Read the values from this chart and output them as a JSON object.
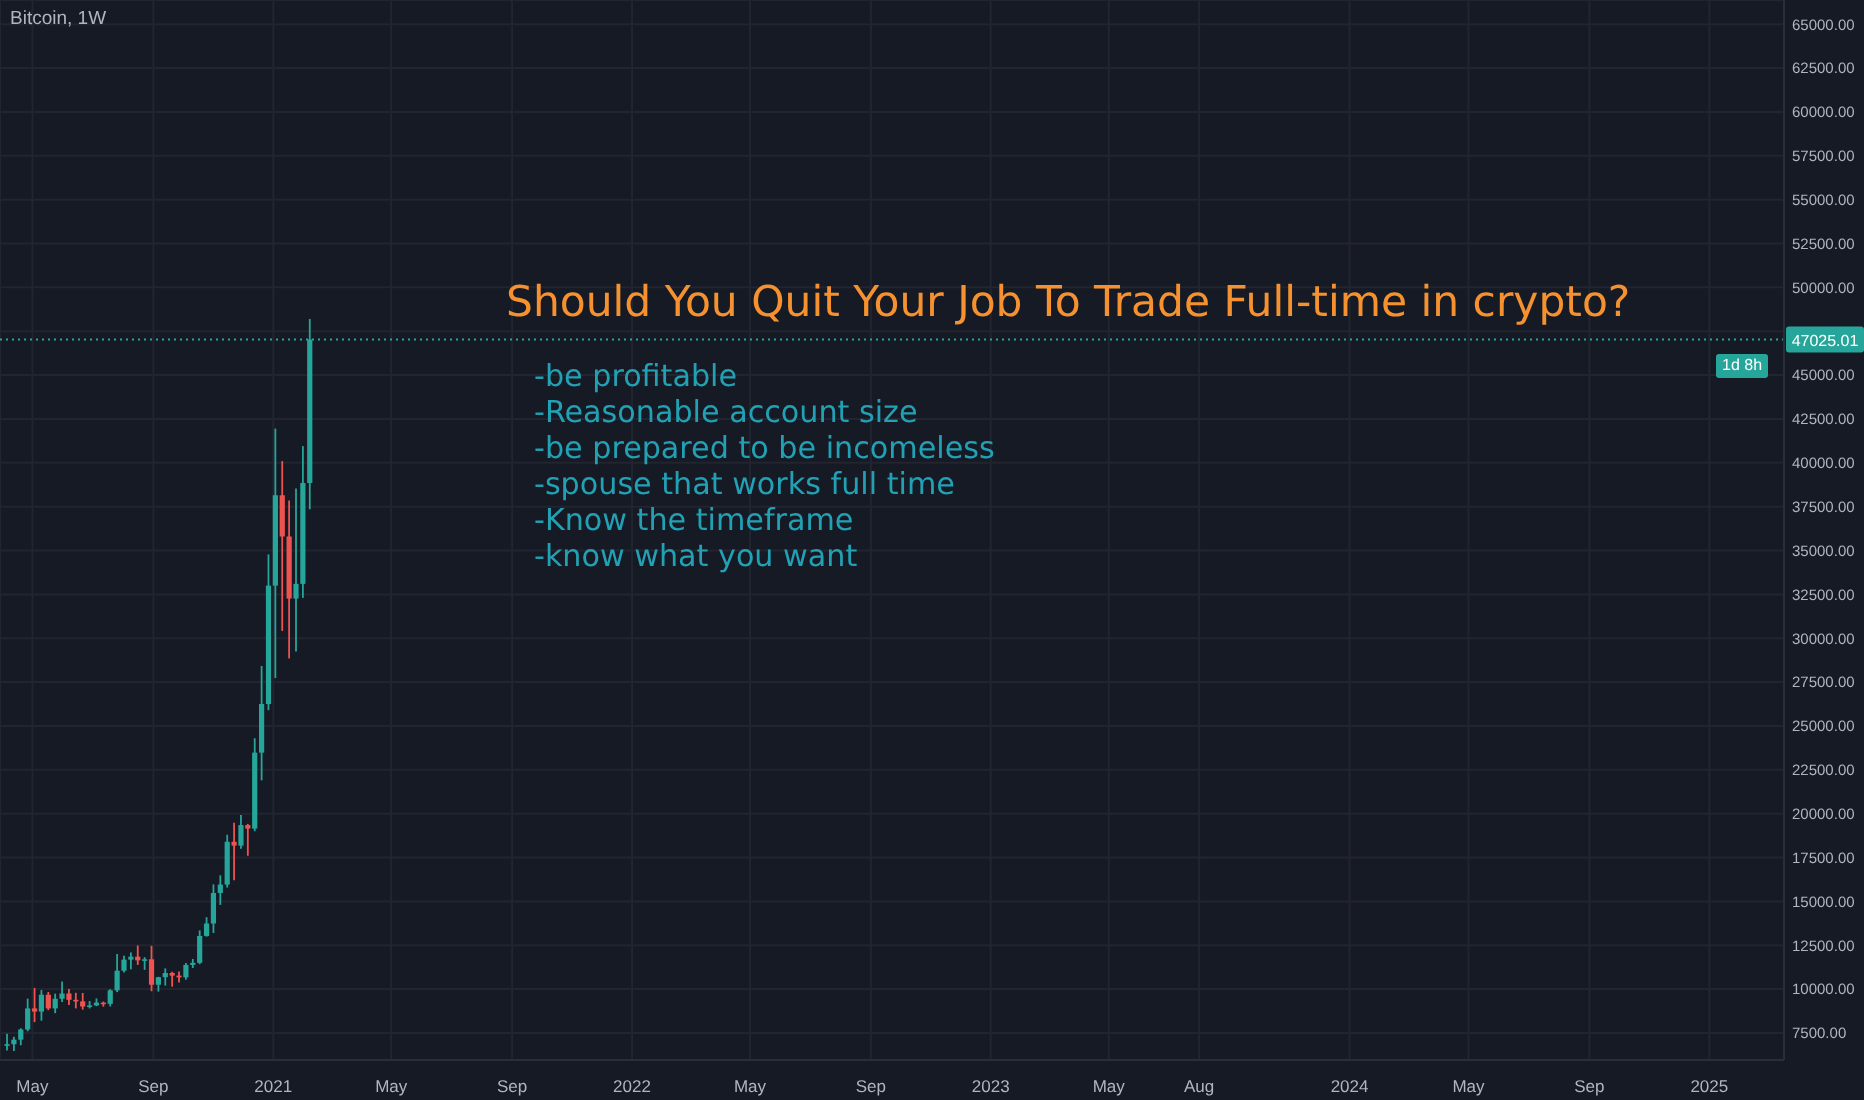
{
  "chart_data": {
    "type": "candlestick",
    "title": "Bitcoin, 1W",
    "subtitle": "Should You Quit Your Job To Trade Full-time in crypto?",
    "annotations": [
      "-be profitable",
      "-Reasonable account size",
      "-be prepared to be incomeless",
      "-spouse that works full time",
      "-Know the timeframe",
      "-know what you want",
      {
        "text": "1d 8h",
        "y": 47025.01
      }
    ],
    "x": [
      "2020-04-06",
      "2020-04-13",
      "2020-04-20",
      "2020-04-27",
      "2020-05-04",
      "2020-05-11",
      "2020-05-18",
      "2020-05-25",
      "2020-06-01",
      "2020-06-08",
      "2020-06-15",
      "2020-06-22",
      "2020-06-29",
      "2020-07-06",
      "2020-07-13",
      "2020-07-20",
      "2020-07-27",
      "2020-08-03",
      "2020-08-10",
      "2020-08-17",
      "2020-08-24",
      "2020-08-31",
      "2020-09-07",
      "2020-09-14",
      "2020-09-21",
      "2020-09-28",
      "2020-10-05",
      "2020-10-12",
      "2020-10-19",
      "2020-10-26",
      "2020-11-02",
      "2020-11-09",
      "2020-11-16",
      "2020-11-23",
      "2020-11-30",
      "2020-12-07",
      "2020-12-14",
      "2020-12-21",
      "2020-12-28",
      "2021-01-04",
      "2021-01-11",
      "2021-01-18",
      "2021-01-25",
      "2021-02-01",
      "2021-02-08"
    ],
    "ohlc": [
      [
        6775,
        7460,
        6500,
        6860
      ],
      [
        6860,
        7290,
        6470,
        7120
      ],
      [
        7120,
        7770,
        6800,
        7700
      ],
      [
        7700,
        9460,
        7600,
        8900
      ],
      [
        8900,
        10070,
        8120,
        8720
      ],
      [
        8720,
        9950,
        8200,
        9680
      ],
      [
        9680,
        9840,
        8800,
        8900
      ],
      [
        8900,
        9740,
        8630,
        9450
      ],
      [
        9450,
        10430,
        9270,
        9750
      ],
      [
        9750,
        10000,
        9100,
        9390
      ],
      [
        9390,
        9790,
        8900,
        9300
      ],
      [
        9300,
        9780,
        8830,
        9010
      ],
      [
        9010,
        9320,
        8900,
        9070
      ],
      [
        9070,
        9470,
        9030,
        9230
      ],
      [
        9230,
        9290,
        9000,
        9160
      ],
      [
        9160,
        10000,
        9010,
        9930
      ],
      [
        9930,
        12000,
        9830,
        11050
      ],
      [
        11050,
        11900,
        10950,
        11680
      ],
      [
        11680,
        12090,
        11130,
        11850
      ],
      [
        11850,
        12490,
        11380,
        11640
      ],
      [
        11640,
        11820,
        11100,
        11700
      ],
      [
        11700,
        12470,
        9880,
        10250
      ],
      [
        10250,
        10700,
        9860,
        10680
      ],
      [
        10680,
        11180,
        10200,
        10920
      ],
      [
        10920,
        10990,
        10140,
        10770
      ],
      [
        10770,
        11000,
        10380,
        10670
      ],
      [
        10670,
        11490,
        10530,
        11380
      ],
      [
        11380,
        11720,
        11200,
        11500
      ],
      [
        11500,
        13350,
        11420,
        13030
      ],
      [
        13030,
        14100,
        12990,
        13740
      ],
      [
        13740,
        15970,
        13200,
        15480
      ],
      [
        15480,
        16490,
        14800,
        15960
      ],
      [
        15960,
        18800,
        15790,
        18400
      ],
      [
        18400,
        19480,
        16200,
        18180
      ],
      [
        18180,
        19920,
        18000,
        19350
      ],
      [
        19350,
        19420,
        17600,
        19150
      ],
      [
        19150,
        24300,
        19000,
        23480
      ],
      [
        23480,
        28420,
        21900,
        26250
      ],
      [
        26250,
        34780,
        25900,
        33000
      ],
      [
        33000,
        41950,
        27730,
        38150
      ],
      [
        38150,
        40100,
        30420,
        35800
      ],
      [
        35800,
        37850,
        28850,
        32260
      ],
      [
        32260,
        38530,
        29240,
        33100
      ],
      [
        33100,
        40950,
        32300,
        38850
      ],
      [
        38850,
        48200,
        37350,
        47025.01
      ]
    ],
    "colors": [
      "#26a69a",
      "#26a69a",
      "#26a69a",
      "#26a69a",
      "#ef5350",
      "#26a69a",
      "#ef5350",
      "#26a69a",
      "#26a69a",
      "#ef5350",
      "#ef5350",
      "#ef5350",
      "#26a69a",
      "#26a69a",
      "#ef5350",
      "#26a69a",
      "#26a69a",
      "#26a69a",
      "#26a69a",
      "#ef5350",
      "#26a69a",
      "#ef5350",
      "#26a69a",
      "#26a69a",
      "#ef5350",
      "#ef5350",
      "#26a69a",
      "#26a69a",
      "#26a69a",
      "#26a69a",
      "#26a69a",
      "#26a69a",
      "#26a69a",
      "#ef5350",
      "#26a69a",
      "#ef5350",
      "#26a69a",
      "#26a69a",
      "#26a69a",
      "#26a69a",
      "#ef5350",
      "#ef5350",
      "#26a69a",
      "#26a69a",
      "#26a69a"
    ],
    "xlim": [
      "2020-03-29",
      "2025-03-18"
    ],
    "xticks": [
      {
        "value": "2020-05-01",
        "label": "May"
      },
      {
        "value": "2020-09-01",
        "label": "Sep"
      },
      {
        "value": "2021-01-01",
        "label": "2021"
      },
      {
        "value": "2021-05-01",
        "label": "May"
      },
      {
        "value": "2021-09-01",
        "label": "Sep"
      },
      {
        "value": "2022-01-01",
        "label": "2022"
      },
      {
        "value": "2022-05-01",
        "label": "May"
      },
      {
        "value": "2022-09-01",
        "label": "Sep"
      },
      {
        "value": "2023-01-01",
        "label": "2023"
      },
      {
        "value": "2023-05-01",
        "label": "May"
      },
      {
        "value": "2023-08-01",
        "label": "Aug"
      },
      {
        "value": "2024-01-01",
        "label": "2024"
      },
      {
        "value": "2024-05-01",
        "label": "May"
      },
      {
        "value": "2024-09-01",
        "label": "Sep"
      },
      {
        "value": "2025-01-01",
        "label": "2025"
      }
    ],
    "ylim": [
      5960,
      66380
    ],
    "yticks": [
      {
        "value": 7500,
        "label": "7500.00"
      },
      {
        "value": 10000,
        "label": "10000.00"
      },
      {
        "value": 12500,
        "label": "12500.00"
      },
      {
        "value": 15000,
        "label": "15000.00"
      },
      {
        "value": 17500,
        "label": "17500.00"
      },
      {
        "value": 20000,
        "label": "20000.00"
      },
      {
        "value": 22500,
        "label": "22500.00"
      },
      {
        "value": 25000,
        "label": "25000.00"
      },
      {
        "value": 27500,
        "label": "27500.00"
      },
      {
        "value": 30000,
        "label": "30000.00"
      },
      {
        "value": 32500,
        "label": "32500.00"
      },
      {
        "value": 35000,
        "label": "35000.00"
      },
      {
        "value": 37500,
        "label": "37500.00"
      },
      {
        "value": 40000,
        "label": "40000.00"
      },
      {
        "value": 42500,
        "label": "42500.00"
      },
      {
        "value": 45000,
        "label": "45000.00"
      },
      {
        "value": 47500,
        "label": null
      },
      {
        "value": 50000,
        "label": "50000.00"
      },
      {
        "value": 52500,
        "label": "52500.00"
      },
      {
        "value": 55000,
        "label": "55000.00"
      },
      {
        "value": 57500,
        "label": "57500.00"
      },
      {
        "value": 60000,
        "label": "60000.00"
      },
      {
        "value": 62500,
        "label": "62500.00"
      },
      {
        "value": 65000,
        "label": "65000.00"
      }
    ],
    "ref_lines": [
      {
        "axis": "y",
        "value": 47025.01,
        "label": "47025.01",
        "color": "#26a69a",
        "line_style": "dotted"
      }
    ],
    "grid": true
  }
}
